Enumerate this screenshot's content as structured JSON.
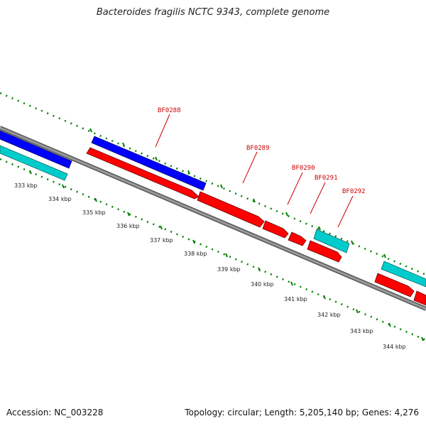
{
  "title": "Bacteroides fragilis NCTC 9343, complete genome",
  "footer": {
    "accession": "Accession: NC_003228",
    "summary": "Topology: circular; Length: 5,205,140 bp; Genes: 4,276"
  },
  "colors": {
    "forward_cds": "#0000ff",
    "reverse_cds": "#ff0000",
    "rna": "#00cccc",
    "backbone": "#808080",
    "ticks": "#008000",
    "labels": "#cc0000"
  },
  "kbp_labels": [
    "333 kbp",
    "334 kbp",
    "335 kbp",
    "336 kbp",
    "337 kbp",
    "338 kbp",
    "339 kbp",
    "340 kbp",
    "341 kbp",
    "342 kbp",
    "343 kbp",
    "344 kbp"
  ],
  "gene_labels": [
    "BF0288",
    "BF0289",
    "BF0290",
    "BF0291",
    "BF0292"
  ]
}
